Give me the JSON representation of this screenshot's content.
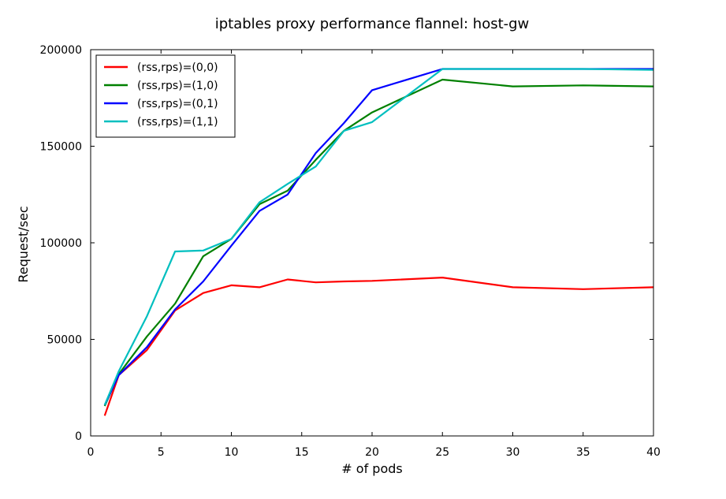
{
  "chart_data": {
    "type": "line",
    "title": "iptables proxy performance flannel: host-gw",
    "xlabel": "# of pods",
    "ylabel": "Request/sec",
    "xlim": [
      0,
      40
    ],
    "ylim": [
      0,
      200000
    ],
    "x_ticks": [
      0,
      5,
      10,
      15,
      20,
      25,
      30,
      35,
      40
    ],
    "y_ticks": [
      0,
      50000,
      100000,
      150000,
      200000
    ],
    "grid": false,
    "legend_position": "top-left",
    "series": [
      {
        "name": "(rss,rps)=(0,0)",
        "color": "#ff0000",
        "x": [
          1,
          2,
          4,
          6,
          8,
          10,
          12,
          14,
          16,
          18,
          20,
          25,
          30,
          35,
          40
        ],
        "y": [
          10500,
          31500,
          44500,
          65000,
          74000,
          78000,
          77000,
          81000,
          79500,
          80000,
          80300,
          82000,
          77000,
          76000,
          77000
        ]
      },
      {
        "name": "(rss,rps)=(1,0)",
        "color": "#008000",
        "x": [
          1,
          2,
          4,
          6,
          8,
          10,
          12,
          14,
          16,
          18,
          20,
          25,
          30,
          35,
          40
        ],
        "y": [
          15500,
          32000,
          51500,
          68500,
          93000,
          102000,
          120000,
          127000,
          143000,
          158000,
          167500,
          184500,
          181000,
          181500,
          181000
        ]
      },
      {
        "name": "(rss,rps)=(0,1)",
        "color": "#0000ff",
        "x": [
          1,
          2,
          4,
          6,
          8,
          10,
          12,
          14,
          16,
          18,
          20,
          25,
          30,
          35,
          40
        ],
        "y": [
          16000,
          31500,
          46000,
          65500,
          80000,
          98500,
          116500,
          125000,
          146500,
          162000,
          179000,
          190000,
          190000,
          190000,
          190000
        ]
      },
      {
        "name": "(rss,rps)=(1,1)",
        "color": "#00bfbf",
        "x": [
          1,
          2,
          4,
          6,
          8,
          10,
          12,
          14,
          16,
          18,
          20,
          25,
          30,
          35,
          40
        ],
        "y": [
          16000,
          33500,
          62000,
          95500,
          96000,
          102000,
          121000,
          130500,
          139500,
          158000,
          162500,
          190000,
          190000,
          190000,
          189500
        ]
      }
    ]
  }
}
